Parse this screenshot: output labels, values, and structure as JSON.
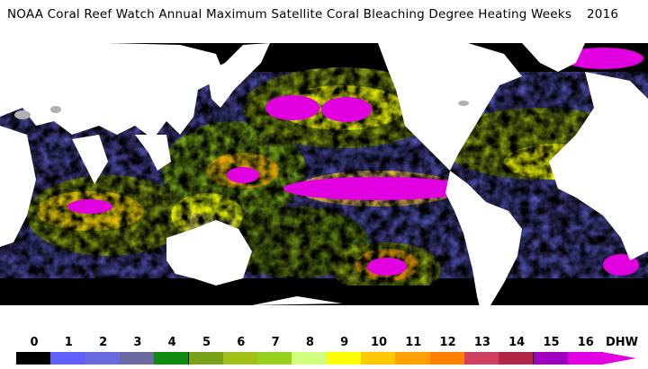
{
  "title": "NOAA Coral Reef Watch Annual Maximum Satellite Coral Bleaching Degree Heating Weeks",
  "year": "2016",
  "legend": {
    "unit": "DHW",
    "labels": [
      "0",
      "1",
      "2",
      "3",
      "4",
      "5",
      "6",
      "7",
      "8",
      "9",
      "10",
      "11",
      "12",
      "13",
      "14",
      "15",
      "16"
    ],
    "colors": [
      "#000000",
      "#6060ff",
      "#6a6adc",
      "#6a6aa0",
      "#108a10",
      "#78a018",
      "#a0c018",
      "#98d020",
      "#d0ff80",
      "#ffff00",
      "#ffc800",
      "#ffa000",
      "#ff8000",
      "#d04060",
      "#b02848",
      "#a000c0",
      "#e000e0"
    ]
  }
}
